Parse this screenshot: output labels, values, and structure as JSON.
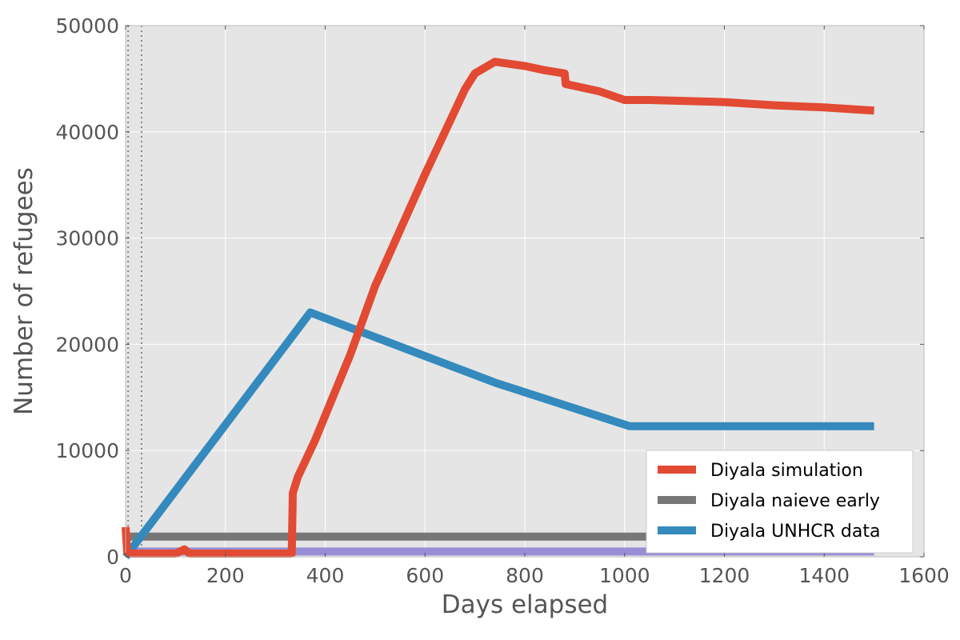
{
  "chart_data": {
    "type": "line",
    "xlabel": "Days elapsed",
    "ylabel": "Number of refugees",
    "xlim": [
      0,
      1600
    ],
    "ylim": [
      0,
      50000
    ],
    "x_ticks": [
      0,
      200,
      400,
      600,
      800,
      1000,
      1200,
      1400,
      1600
    ],
    "y_ticks": [
      0,
      10000,
      20000,
      30000,
      40000,
      50000
    ],
    "x_tick_labels": [
      "0",
      "200",
      "400",
      "600",
      "800",
      "1000",
      "1200",
      "1400",
      "1600"
    ],
    "y_tick_labels": [
      "0",
      "10000",
      "20000",
      "30000",
      "40000",
      "50000"
    ],
    "grid": true,
    "legend_position": "lower-right",
    "vertical_reference_lines": [
      5,
      32
    ],
    "series": [
      {
        "name": "Diyala simulation",
        "color": "#e24a33",
        "in_legend": true,
        "points": [
          [
            0,
            2800
          ],
          [
            3,
            500
          ],
          [
            10,
            300
          ],
          [
            100,
            300
          ],
          [
            118,
            700
          ],
          [
            128,
            300
          ],
          [
            330,
            300
          ],
          [
            333,
            300
          ],
          [
            335,
            6000
          ],
          [
            345,
            7500
          ],
          [
            380,
            11000
          ],
          [
            450,
            19000
          ],
          [
            500,
            25500
          ],
          [
            600,
            36000
          ],
          [
            680,
            44000
          ],
          [
            700,
            45500
          ],
          [
            740,
            46600
          ],
          [
            800,
            46200
          ],
          [
            840,
            45800
          ],
          [
            880,
            45500
          ],
          [
            882,
            44500
          ],
          [
            950,
            43800
          ],
          [
            1000,
            43000
          ],
          [
            1050,
            43000
          ],
          [
            1200,
            42800
          ],
          [
            1300,
            42500
          ],
          [
            1400,
            42300
          ],
          [
            1500,
            42000
          ]
        ]
      },
      {
        "name": "Diyala naieve early",
        "color": "#777777",
        "in_legend": true,
        "points": [
          [
            5,
            1900
          ],
          [
            1500,
            1900
          ]
        ]
      },
      {
        "name": "Diyala UNHCR data",
        "color": "#348abd",
        "in_legend": true,
        "points": [
          [
            0,
            0
          ],
          [
            370,
            23000
          ],
          [
            740,
            16400
          ],
          [
            1010,
            12300
          ],
          [
            1500,
            12300
          ]
        ]
      },
      {
        "name": "",
        "color": "#988ed5",
        "in_legend": false,
        "points": [
          [
            5,
            500
          ],
          [
            1500,
            500
          ]
        ]
      }
    ]
  }
}
